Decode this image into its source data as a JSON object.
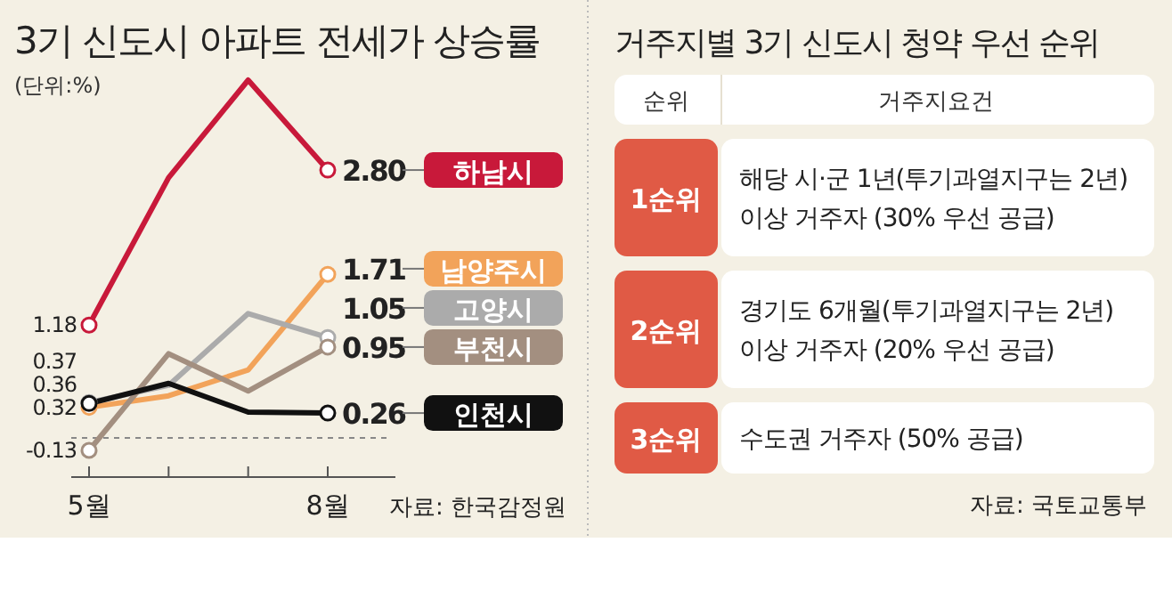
{
  "chart_data": [
    {
      "type": "line",
      "title": "3기 신도시 아파트 전세가 상승률",
      "categories": [
        "5월",
        null,
        null,
        "8월"
      ],
      "marker": "circle",
      "annotations": [
        "(단위:%)",
        "자료: 한국감정원"
      ],
      "ref_lines": [
        {
          "axis": "y",
          "value": 0,
          "color": "#888888",
          "line_style": "dashed"
        }
      ],
      "series": [
        {
          "name": "하남시",
          "color": "#c8193a",
          "values": [
            1.18,
            2.72,
            3.74,
            2.8
          ],
          "value_labels": [
            "1.18",
            null,
            null,
            "2.80"
          ]
        },
        {
          "name": "남양주시",
          "color": "#f2a35a",
          "values": [
            0.32,
            0.44,
            0.71,
            1.71
          ],
          "value_labels": [
            "0.32",
            null,
            null,
            "1.71"
          ]
        },
        {
          "name": "고양시",
          "color": "#ababab",
          "values": [
            0.37,
            0.55,
            1.3,
            1.05
          ],
          "value_labels": [
            "0.37",
            null,
            null,
            "1.05"
          ]
        },
        {
          "name": "부천시",
          "color": "#a38f80",
          "values": [
            -0.13,
            0.88,
            0.49,
            0.95
          ],
          "value_labels": [
            "-0.13",
            null,
            null,
            "0.95"
          ]
        },
        {
          "name": "인천시",
          "color": "#111111",
          "values": [
            0.36,
            0.57,
            0.27,
            0.26
          ],
          "value_labels": [
            "0.36",
            null,
            null,
            "0.26"
          ]
        }
      ]
    },
    {
      "type": "other",
      "title": "거주지별 3기 신도시 청약 우선 순위",
      "categories": [
        "순위",
        "거주지요건"
      ],
      "y_categories": [
        "1순위",
        "2순위",
        "3순위"
      ],
      "cell_labels": [
        [
          "해당 시·군 1년(투기과열지구는 2년)\n이상 거주자 (30% 우선 공급)"
        ],
        [
          "경기도 6개월(투기과열지구는 2년)\n이상 거주자 (20% 우선 공급)"
        ],
        [
          "수도권 거주자 (50% 공급)"
        ]
      ],
      "annotations": [
        "자료: 국토교통부"
      ]
    }
  ]
}
